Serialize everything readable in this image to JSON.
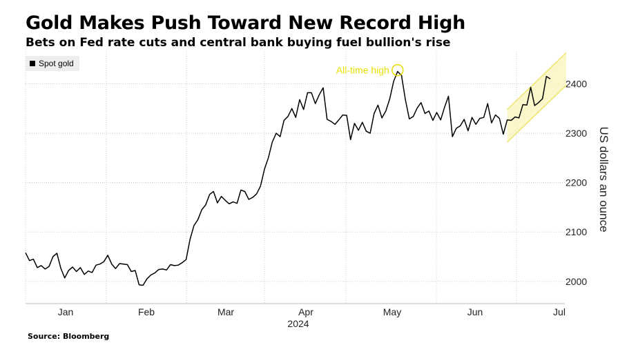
{
  "chart_data": {
    "type": "line",
    "title": "Gold Makes Push Toward New Record High",
    "subtitle": "Bets on Fed rate cuts and central bank buying fuel bullion's rise",
    "series": [
      {
        "name": "Spot gold",
        "color": "#000000",
        "values": [
          2058,
          2042,
          2045,
          2028,
          2032,
          2025,
          2030,
          2050,
          2057,
          2027,
          2007,
          2022,
          2029,
          2020,
          2028,
          2014,
          2021,
          2018,
          2033,
          2035,
          2040,
          2053,
          2035,
          2026,
          2036,
          2035,
          2034,
          2020,
          2022,
          1993,
          1992,
          2005,
          2013,
          2017,
          2024,
          2025,
          2023,
          2034,
          2032,
          2033,
          2038,
          2044,
          2085,
          2113,
          2125,
          2145,
          2155,
          2176,
          2182,
          2159,
          2172,
          2164,
          2157,
          2161,
          2158,
          2185,
          2182,
          2166,
          2170,
          2177,
          2193,
          2227,
          2250,
          2282,
          2300,
          2293,
          2326,
          2334,
          2350,
          2332,
          2368,
          2348,
          2382,
          2382,
          2360,
          2378,
          2392,
          2328,
          2324,
          2318,
          2327,
          2337,
          2336,
          2287,
          2320,
          2306,
          2322,
          2304,
          2300,
          2340,
          2357,
          2331,
          2345,
          2370,
          2405,
          2425,
          2417,
          2368,
          2329,
          2334,
          2351,
          2362,
          2340,
          2345,
          2326,
          2342,
          2327,
          2353,
          2375,
          2293,
          2310,
          2315,
          2328,
          2305,
          2332,
          2318,
          2330,
          2332,
          2360,
          2321,
          2337,
          2330,
          2298,
          2327,
          2326,
          2333,
          2331,
          2358,
          2357,
          2393,
          2356,
          2362,
          2370,
          2415,
          2410
        ]
      }
    ],
    "x_tick_labels": [
      "Jan",
      "Feb",
      "Mar",
      "Apr",
      "May",
      "Jun",
      "Jul"
    ],
    "x_year_label": "2024",
    "y_ticks": [
      2000,
      2100,
      2200,
      2300,
      2400
    ],
    "ylim": [
      1955,
      2465
    ],
    "ylabel": "US dollars an ounce",
    "xlabel": "",
    "legend_position": "top-left",
    "grid": true,
    "annotation": {
      "text": "All-time high",
      "value": 2425,
      "color": "#e8de00"
    },
    "trend_channel": {
      "start_index": 123,
      "center_start": 2315,
      "center_end": 2430,
      "half_width": 33,
      "fill": "#fbf6c4",
      "stroke": "#ede56a"
    }
  },
  "legend": {
    "label": "Spot gold"
  },
  "source": "Source: Bloomberg"
}
